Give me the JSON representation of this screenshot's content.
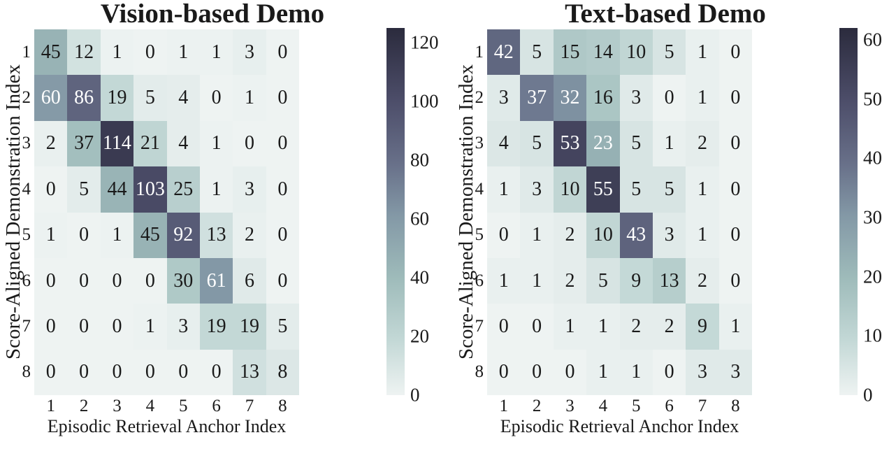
{
  "figure": {
    "background": "#ffffff",
    "text_color": "#1a1a1a",
    "annotation_white": "#ffffff",
    "colormap_stops": [
      {
        "t": 0.0,
        "color": "#eef3f2"
      },
      {
        "t": 0.15,
        "color": "#c3d8d6"
      },
      {
        "t": 0.32,
        "color": "#9ebbba"
      },
      {
        "t": 0.49,
        "color": "#8398a6"
      },
      {
        "t": 0.63,
        "color": "#687089"
      },
      {
        "t": 0.8,
        "color": "#4d4e6a"
      },
      {
        "t": 1.0,
        "color": "#2b2b3d"
      }
    ]
  },
  "chart_data": [
    {
      "type": "heatmap",
      "title": "Vision-based Demo",
      "xlabel": "Episodic Retrieval Anchor Index",
      "ylabel": "Score-Aligned Demonstration Index",
      "x_ticks": [
        "1",
        "2",
        "3",
        "4",
        "5",
        "6",
        "7",
        "8"
      ],
      "y_ticks": [
        "1",
        "2",
        "3",
        "4",
        "5",
        "6",
        "7",
        "8"
      ],
      "matrix": [
        [
          45,
          12,
          1,
          0,
          1,
          1,
          3,
          0
        ],
        [
          60,
          86,
          19,
          5,
          4,
          0,
          1,
          0
        ],
        [
          2,
          37,
          114,
          21,
          4,
          1,
          0,
          0
        ],
        [
          0,
          5,
          44,
          103,
          25,
          1,
          3,
          0
        ],
        [
          1,
          0,
          1,
          45,
          92,
          13,
          2,
          0
        ],
        [
          0,
          0,
          0,
          0,
          30,
          61,
          6,
          0
        ],
        [
          0,
          0,
          0,
          1,
          3,
          19,
          19,
          5
        ],
        [
          0,
          0,
          0,
          0,
          0,
          0,
          13,
          8
        ]
      ],
      "vmin": 0,
      "vmax": 125,
      "colorbar_ticks": [
        120,
        100,
        80,
        60,
        40,
        20,
        0
      ],
      "white_text_min": 50,
      "legend_position": "right-colorbar",
      "grid": "off"
    },
    {
      "type": "heatmap",
      "title": "Text-based Demo",
      "xlabel": "Episodic Retrieval Anchor Index",
      "ylabel": "Score-Aligned Demonstration Index",
      "x_ticks": [
        "1",
        "2",
        "3",
        "4",
        "5",
        "6",
        "7",
        "8"
      ],
      "y_ticks": [
        "1",
        "2",
        "3",
        "4",
        "5",
        "6",
        "7",
        "8"
      ],
      "matrix": [
        [
          42,
          5,
          15,
          14,
          10,
          5,
          1,
          0
        ],
        [
          3,
          37,
          32,
          16,
          3,
          0,
          1,
          0
        ],
        [
          4,
          5,
          53,
          23,
          5,
          1,
          2,
          0
        ],
        [
          1,
          3,
          10,
          55,
          5,
          5,
          1,
          0
        ],
        [
          0,
          1,
          2,
          10,
          43,
          3,
          1,
          0
        ],
        [
          1,
          1,
          2,
          5,
          9,
          13,
          2,
          0
        ],
        [
          0,
          0,
          1,
          1,
          2,
          2,
          9,
          1
        ],
        [
          0,
          0,
          0,
          1,
          1,
          0,
          3,
          3
        ]
      ],
      "vmin": 0,
      "vmax": 62,
      "colorbar_ticks": [
        60,
        50,
        40,
        30,
        20,
        10,
        0
      ],
      "white_text_min": 20,
      "legend_position": "right-colorbar",
      "grid": "off"
    }
  ]
}
